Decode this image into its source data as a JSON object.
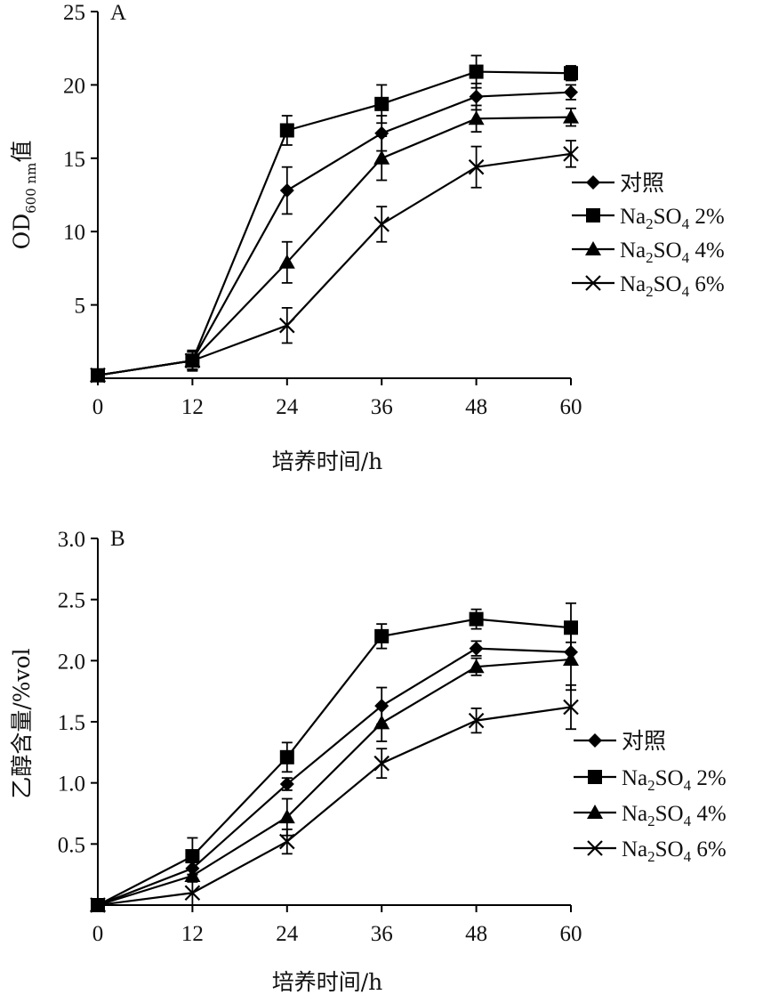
{
  "chart_data": [
    {
      "type": "line",
      "panel_label": "A",
      "x": [
        0,
        12,
        24,
        36,
        48,
        60
      ],
      "xticks": [
        "0",
        "12",
        "24",
        "36",
        "48",
        "60"
      ],
      "xlim": [
        0,
        60
      ],
      "xlabel": "培养时间/h",
      "ylabel": {
        "main": "OD",
        "sub": "600 nm",
        "suffix": "值"
      },
      "ylim": [
        0,
        25
      ],
      "yticks": [
        "5",
        "10",
        "15",
        "20",
        "25"
      ],
      "grid": false,
      "legend_position": "right",
      "series": [
        {
          "name": "对照",
          "marker": "diamond",
          "values": [
            0.2,
            1.2,
            12.8,
            16.7,
            19.2,
            19.5
          ],
          "errors": [
            0.2,
            0.6,
            1.6,
            1.2,
            0.9,
            0.5
          ]
        },
        {
          "name": "Na2SO4 2%",
          "marker": "square",
          "values": [
            0.2,
            1.2,
            16.9,
            18.7,
            20.9,
            20.8
          ],
          "errors": [
            0.2,
            0.7,
            1.0,
            1.3,
            1.1,
            0.5
          ]
        },
        {
          "name": "Na2SO4 4%",
          "marker": "triangle",
          "values": [
            0.2,
            1.2,
            7.9,
            15.0,
            17.7,
            17.8
          ],
          "errors": [
            0.2,
            0.6,
            1.4,
            1.5,
            0.9,
            0.6
          ]
        },
        {
          "name": "Na2SO4 6%",
          "marker": "x",
          "values": [
            0.2,
            1.2,
            3.6,
            10.5,
            14.4,
            15.3
          ],
          "errors": [
            0.2,
            0.6,
            1.2,
            1.2,
            1.4,
            0.9
          ]
        }
      ]
    },
    {
      "type": "line",
      "panel_label": "B",
      "x": [
        0,
        12,
        24,
        36,
        48,
        60
      ],
      "xticks": [
        "0",
        "12",
        "24",
        "36",
        "48",
        "60"
      ],
      "xlim": [
        0,
        60
      ],
      "xlabel": "培养时间/h",
      "ylabel": {
        "main": "乙醇含量/%vol",
        "sub": "",
        "suffix": ""
      },
      "ylim": [
        0,
        3.0
      ],
      "yticks": [
        "0.5",
        "1.0",
        "1.5",
        "2.0",
        "2.5",
        "3.0"
      ],
      "grid": false,
      "legend_position": "right",
      "series": [
        {
          "name": "对照",
          "marker": "diamond",
          "values": [
            0.0,
            0.3,
            0.99,
            1.63,
            2.1,
            2.07
          ],
          "errors": [
            0.02,
            0.05,
            0.05,
            0.15,
            0.06,
            0.08
          ]
        },
        {
          "name": "Na2SO4 2%",
          "marker": "square",
          "values": [
            0.0,
            0.4,
            1.21,
            2.2,
            2.34,
            2.27
          ],
          "errors": [
            0.02,
            0.15,
            0.12,
            0.1,
            0.08,
            0.2
          ]
        },
        {
          "name": "Na2SO4 4%",
          "marker": "triangle",
          "values": [
            0.0,
            0.24,
            0.72,
            1.49,
            1.95,
            2.01
          ],
          "errors": [
            0.02,
            0.05,
            0.15,
            0.15,
            0.07,
            0.25
          ]
        },
        {
          "name": "Na2SO4 6%",
          "marker": "x",
          "values": [
            0.0,
            0.1,
            0.52,
            1.16,
            1.51,
            1.62
          ],
          "errors": [
            0.02,
            0.1,
            0.1,
            0.12,
            0.1,
            0.18
          ]
        }
      ]
    }
  ]
}
